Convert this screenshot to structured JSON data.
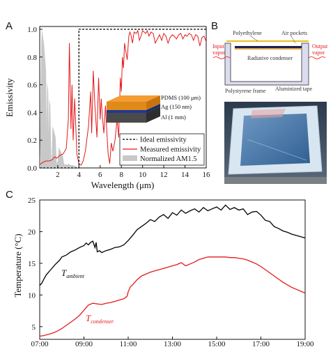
{
  "panels": {
    "a": "A",
    "b": "B",
    "c": "C"
  },
  "chart_data": [
    {
      "type": "line",
      "panel": "A",
      "xlabel": "Wavelength (μm)",
      "ylabel": "Emissivity",
      "xlim": [
        0.3,
        16
      ],
      "ylim": [
        0,
        1.02
      ],
      "x_ticks": [
        2,
        4,
        6,
        8,
        10,
        12,
        14,
        16
      ],
      "y_ticks": [
        0.0,
        0.2,
        0.4,
        0.6,
        0.8,
        1.0
      ],
      "x_tick_labels": [
        "2",
        "4",
        "6",
        "8",
        "10",
        "12",
        "14",
        "16"
      ],
      "y_tick_labels": [
        "0.0",
        "0.2",
        "0.4",
        "0.6",
        "0.8",
        "1.0"
      ],
      "legend_position": "bottom-right",
      "inset_layers": [
        "PDMS (100 μm)",
        "Ag (150 nm)",
        "Al (1 mm)"
      ],
      "series": [
        {
          "name": "Ideal emissivity",
          "style": "dashed",
          "color": "#000000",
          "x": [
            0.3,
            4.0,
            4.0,
            16.0
          ],
          "y": [
            0.0,
            0.0,
            1.0,
            1.0
          ]
        },
        {
          "name": "Measured emissivity",
          "style": "solid",
          "color": "#e41a1c",
          "x": [
            0.3,
            0.4,
            0.6,
            0.9,
            1.2,
            1.5,
            1.7,
            1.9,
            2.2,
            2.5,
            2.8,
            3.0,
            3.1,
            3.25,
            3.35,
            3.45,
            3.6,
            3.8,
            4.0,
            4.2,
            4.4,
            4.6,
            4.9,
            5.1,
            5.2,
            5.35,
            5.5,
            5.7,
            5.85,
            6.0,
            6.1,
            6.2,
            6.35,
            6.5,
            6.6,
            6.75,
            6.9,
            7.05,
            7.2,
            7.4,
            7.6,
            7.75,
            7.9,
            8.0,
            8.1,
            8.2,
            8.3,
            8.4,
            8.55,
            8.7,
            8.8,
            8.9,
            9.05,
            9.2,
            9.4,
            9.55,
            9.7,
            9.85,
            10.0,
            10.15,
            10.3,
            10.45,
            10.6,
            10.8,
            11.0,
            11.2,
            11.4,
            11.6,
            11.8,
            12.0,
            12.2,
            12.4,
            12.6,
            12.8,
            13.0,
            13.2,
            13.4,
            13.6,
            13.8,
            14.0,
            14.2,
            14.4,
            14.6,
            14.8,
            15.0,
            15.2,
            15.4,
            15.6,
            15.8,
            16.0
          ],
          "y": [
            0.02,
            0.03,
            0.04,
            0.05,
            0.05,
            0.06,
            0.08,
            0.07,
            0.09,
            0.1,
            0.14,
            0.35,
            0.9,
            0.28,
            0.6,
            0.2,
            0.5,
            0.1,
            0.03,
            0.02,
            0.05,
            0.12,
            0.3,
            0.55,
            0.25,
            0.7,
            0.45,
            0.22,
            0.65,
            0.35,
            0.5,
            0.38,
            0.25,
            0.45,
            0.3,
            0.1,
            0.03,
            0.18,
            0.12,
            0.2,
            0.35,
            0.22,
            0.65,
            0.55,
            0.8,
            0.72,
            0.9,
            0.85,
            0.78,
            0.95,
            0.98,
            0.96,
            0.9,
            0.98,
            0.97,
            0.99,
            0.92,
            0.95,
            0.99,
            0.98,
            0.97,
            0.99,
            0.95,
            0.98,
            0.97,
            0.9,
            0.93,
            0.96,
            0.92,
            0.97,
            0.95,
            0.9,
            0.94,
            0.96,
            0.95,
            0.93,
            0.96,
            0.97,
            0.93,
            0.96,
            0.95,
            0.97,
            0.96,
            0.92,
            0.96,
            0.95,
            0.88,
            0.94,
            0.95,
            0.91
          ]
        },
        {
          "name": "Normalized AM1.5",
          "style": "area",
          "color": "#c8c8c8",
          "x": [
            0.3,
            0.35,
            0.4,
            0.45,
            0.5,
            0.55,
            0.6,
            0.7,
            0.8,
            0.9,
            0.95,
            1.0,
            1.1,
            1.15,
            1.2,
            1.3,
            1.4,
            1.45,
            1.5,
            1.6,
            1.7,
            1.8,
            1.9,
            2.0,
            2.1,
            2.2,
            2.3,
            2.4,
            2.5,
            2.6,
            2.7,
            2.8,
            2.9,
            3.0,
            3.2,
            3.4,
            3.6,
            3.8,
            4.0
          ],
          "y": [
            0.0,
            0.3,
            0.6,
            0.9,
            1.0,
            0.98,
            0.95,
            0.9,
            0.8,
            0.7,
            0.3,
            0.62,
            0.55,
            0.25,
            0.5,
            0.45,
            0.05,
            0.1,
            0.3,
            0.28,
            0.25,
            0.22,
            0.03,
            0.05,
            0.15,
            0.13,
            0.12,
            0.1,
            0.08,
            0.03,
            0.02,
            0.03,
            0.02,
            0.03,
            0.02,
            0.02,
            0.015,
            0.01,
            0.0
          ]
        }
      ]
    },
    {
      "type": "line",
      "panel": "C",
      "xlabel": "",
      "ylabel": "Temperature (°C)",
      "xlim": [
        7,
        19
      ],
      "ylim": [
        3,
        25
      ],
      "x_ticks": [
        7,
        9,
        11,
        13,
        15,
        17,
        19
      ],
      "x_tick_labels": [
        "07:00",
        "09:00",
        "11:00",
        "13:00",
        "15:00",
        "17:00",
        "19:00"
      ],
      "y_ticks": [
        5,
        10,
        15,
        20,
        25
      ],
      "y_tick_labels": [
        "5",
        "10",
        "15",
        "20",
        "25"
      ],
      "series": [
        {
          "name": "T_ambient",
          "label_main": "T",
          "label_sub": "ambient",
          "color": "#000000",
          "x": [
            7.0,
            7.1,
            7.2,
            7.3,
            7.5,
            7.7,
            7.9,
            8.0,
            8.2,
            8.4,
            8.6,
            8.8,
            9.0,
            9.1,
            9.2,
            9.3,
            9.4,
            9.5,
            9.55,
            9.6,
            9.7,
            9.8,
            10.0,
            10.2,
            10.4,
            10.6,
            10.8,
            11.0,
            11.2,
            11.4,
            11.6,
            11.8,
            12.0,
            12.2,
            12.4,
            12.6,
            12.8,
            13.0,
            13.2,
            13.4,
            13.6,
            13.8,
            14.0,
            14.2,
            14.4,
            14.6,
            14.8,
            15.0,
            15.2,
            15.4,
            15.6,
            15.8,
            16.0,
            16.2,
            16.4,
            16.6,
            16.8,
            17.0,
            17.2,
            17.4,
            17.6,
            17.8,
            18.0,
            18.2,
            18.4,
            18.6,
            18.8,
            19.0
          ],
          "y": [
            11.5,
            11.9,
            12.6,
            13.2,
            14.0,
            14.8,
            15.5,
            16.0,
            16.3,
            16.8,
            17.1,
            17.5,
            17.8,
            18.2,
            17.9,
            18.3,
            18.5,
            17.5,
            18.3,
            16.8,
            17.0,
            16.7,
            17.0,
            17.2,
            17.5,
            17.6,
            17.9,
            18.6,
            19.4,
            20.3,
            20.8,
            21.3,
            21.9,
            21.6,
            22.3,
            22.7,
            22.1,
            23.0,
            22.6,
            23.4,
            22.9,
            23.3,
            23.6,
            23.1,
            23.8,
            23.3,
            23.6,
            23.9,
            23.4,
            24.2,
            23.5,
            23.8,
            23.4,
            23.6,
            22.7,
            23.1,
            23.2,
            22.6,
            21.8,
            21.6,
            20.8,
            20.5,
            20.1,
            19.9,
            19.6,
            19.4,
            19.2,
            19.0
          ]
        },
        {
          "name": "T_condenser",
          "label_main": "T",
          "label_sub": "condenser",
          "color": "#e41a1c",
          "x": [
            7.0,
            7.2,
            7.4,
            7.6,
            7.8,
            8.0,
            8.2,
            8.4,
            8.6,
            8.8,
            9.0,
            9.2,
            9.4,
            9.6,
            9.8,
            10.0,
            10.2,
            10.4,
            10.6,
            10.8,
            10.95,
            11.0,
            11.1,
            11.2,
            11.4,
            11.6,
            11.8,
            12.0,
            12.2,
            12.4,
            12.6,
            12.8,
            13.0,
            13.2,
            13.4,
            13.6,
            13.8,
            14.0,
            14.2,
            14.4,
            14.6,
            14.8,
            15.0,
            15.2,
            15.4,
            15.6,
            15.8,
            16.0,
            16.2,
            16.4,
            16.6,
            16.8,
            17.0,
            17.2,
            17.4,
            17.6,
            17.8,
            18.0,
            18.2,
            18.4,
            18.6,
            18.8,
            19.0
          ],
          "y": [
            3.5,
            3.6,
            3.8,
            4.0,
            4.3,
            4.7,
            5.2,
            5.7,
            6.2,
            6.8,
            7.6,
            8.4,
            8.7,
            8.6,
            8.5,
            8.7,
            8.8,
            9.0,
            9.2,
            9.4,
            9.8,
            10.5,
            11.3,
            11.6,
            12.4,
            13.0,
            13.3,
            13.6,
            13.8,
            14.0,
            14.2,
            14.4,
            14.6,
            14.8,
            15.1,
            14.6,
            14.9,
            15.2,
            15.6,
            15.8,
            16.0,
            16.0,
            16.0,
            16.0,
            16.0,
            15.9,
            15.9,
            15.8,
            15.7,
            15.5,
            15.2,
            14.9,
            14.5,
            14.0,
            13.5,
            13.0,
            12.5,
            12.0,
            11.6,
            11.2,
            10.9,
            10.6,
            10.3
          ]
        }
      ]
    }
  ],
  "schematic": {
    "labels": {
      "polyethylene": "Polyethylene",
      "air_pockets": "Air pockets",
      "input_vapor_1": "Input",
      "input_vapor_2": "vapor",
      "output_vapor_1": "Output",
      "output_vapor_2": "vapor",
      "radiative_condenser": "Radiative condenser",
      "polystyrene_frame": "Polystyrene frame",
      "aluminized_tape": "Aluminized tape"
    },
    "colors": {
      "frame": "#dcdcf0",
      "frame_border": "#555555",
      "red_text": "#e41a1c",
      "photo_sky": "#4a7aa8",
      "photo_frame": "#d8e6f2"
    }
  }
}
